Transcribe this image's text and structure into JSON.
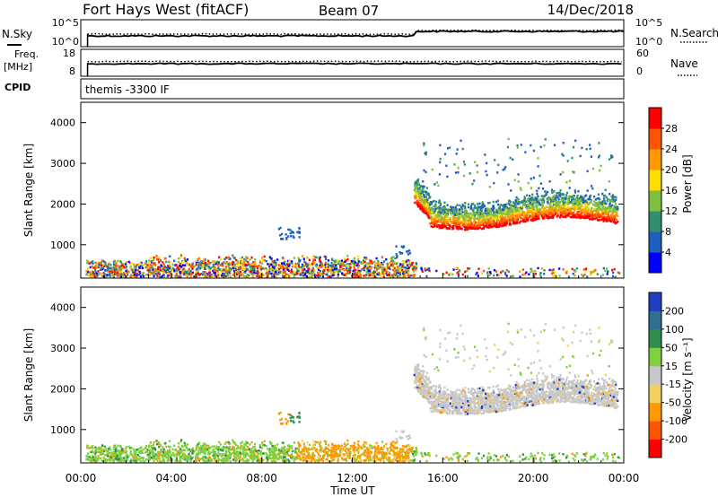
{
  "header": {
    "station": "Fort Hays West (fitACF)",
    "beam": "Beam 07",
    "date": "14/Dec/2018"
  },
  "noise_panel": {
    "left_label": "N.Sky",
    "right_label": "N.Search",
    "left_ticks": [
      "10^5",
      "10^0"
    ],
    "right_ticks": [
      "10^5",
      "10^0"
    ]
  },
  "freq_panel": {
    "left_label_1": "Freq.",
    "left_label_2": "[MHz]",
    "right_label": "Nave",
    "left_ticks": [
      "18",
      "8"
    ],
    "right_ticks": [
      "60",
      "0"
    ]
  },
  "cpid_panel": {
    "label": "CPID",
    "program": "themis -3300 IF"
  },
  "x_axis": {
    "label": "Time UT",
    "ticks": [
      "00:00",
      "04:00",
      "08:00",
      "12:00",
      "16:00",
      "20:00",
      "00:00"
    ]
  },
  "colors": {
    "power": [
      "#0000ff",
      "#1f5fbf",
      "#2f8f6f",
      "#7fbf3f",
      "#ffdd00",
      "#ff9900",
      "#ff5500",
      "#ff0000"
    ],
    "velocity": [
      "#1f3fbf",
      "#2f6f8f",
      "#2f8f4f",
      "#7fd03f",
      "#c8c8c8",
      "#f0d060",
      "#ff9900",
      "#ff5500",
      "#ff0000"
    ]
  },
  "chart_data": [
    {
      "type": "heatmap",
      "title": "",
      "xlabel": "",
      "ylabel": "Slant Range [km]",
      "xlim": [
        0,
        24
      ],
      "ylim": [
        180,
        4500
      ],
      "yticks": [
        "1000",
        "2000",
        "3000",
        "4000"
      ],
      "colorbar": {
        "label": "Power [dB]",
        "ticks": [
          "4",
          "8",
          "12",
          "16",
          "20",
          "24",
          "28"
        ]
      }
    },
    {
      "type": "heatmap",
      "title": "",
      "xlabel": "Time UT",
      "ylabel": "Slant Range [km]",
      "xlim": [
        0,
        24
      ],
      "ylim": [
        180,
        4500
      ],
      "yticks": [
        "1000",
        "2000",
        "3000",
        "4000"
      ],
      "colorbar": {
        "label": "Velocity [m s⁻¹]",
        "ticks": [
          "200",
          "100",
          "50",
          "15",
          "-15",
          "-50",
          "-100",
          "-200"
        ]
      }
    }
  ]
}
